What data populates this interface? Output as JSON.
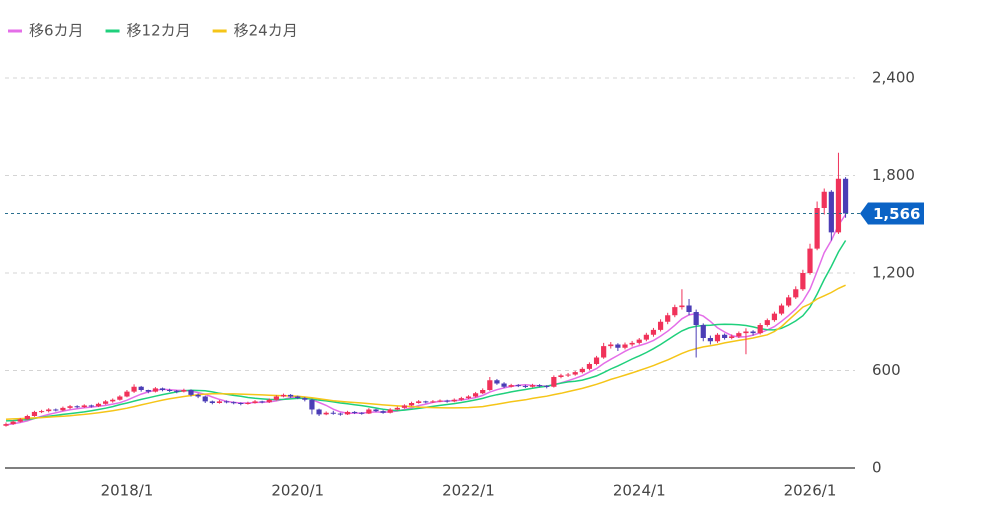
{
  "chart_data": {
    "type": "candlestick",
    "up_color": "#f0325a",
    "down_color": "#4b3db6",
    "x": [
      "2016/8",
      "2016/9",
      "2016/10",
      "2016/11",
      "2016/12",
      "2017/1",
      "2017/2",
      "2017/3",
      "2017/4",
      "2017/5",
      "2017/6",
      "2017/7",
      "2017/8",
      "2017/9",
      "2017/10",
      "2017/11",
      "2017/12",
      "2018/1",
      "2018/2",
      "2018/3",
      "2018/4",
      "2018/5",
      "2018/6",
      "2018/7",
      "2018/8",
      "2018/9",
      "2018/10",
      "2018/11",
      "2018/12",
      "2019/1",
      "2019/2",
      "2019/3",
      "2019/4",
      "2019/5",
      "2019/6",
      "2019/7",
      "2019/8",
      "2019/9",
      "2019/10",
      "2019/11",
      "2019/12",
      "2020/1",
      "2020/2",
      "2020/3",
      "2020/4",
      "2020/5",
      "2020/6",
      "2020/7",
      "2020/8",
      "2020/9",
      "2020/10",
      "2020/11",
      "2020/12",
      "2021/1",
      "2021/2",
      "2021/3",
      "2021/4",
      "2021/5",
      "2021/6",
      "2021/7",
      "2021/8",
      "2021/9",
      "2021/10",
      "2021/11",
      "2021/12",
      "2022/1",
      "2022/2",
      "2022/3",
      "2022/4",
      "2022/5",
      "2022/6",
      "2022/7",
      "2022/8",
      "2022/9",
      "2022/10",
      "2022/11",
      "2022/12",
      "2023/1",
      "2023/2",
      "2023/3",
      "2023/4",
      "2023/5",
      "2023/6",
      "2023/7",
      "2023/8",
      "2023/9",
      "2023/10",
      "2023/11",
      "2023/12",
      "2024/1",
      "2024/2",
      "2024/3",
      "2024/4",
      "2024/5",
      "2024/6",
      "2024/7",
      "2024/8",
      "2024/9",
      "2024/10",
      "2024/11",
      "2024/12",
      "2025/1",
      "2025/2",
      "2025/3",
      "2025/4",
      "2025/5",
      "2025/6",
      "2025/7",
      "2025/8",
      "2025/9",
      "2025/10",
      "2025/11",
      "2025/12",
      "2026/1",
      "2026/2",
      "2026/3",
      "2026/4",
      "2026/5",
      "2026/6"
    ],
    "candles": [
      [
        260,
        280,
        255,
        270
      ],
      [
        270,
        292,
        265,
        285
      ],
      [
        285,
        308,
        280,
        300
      ],
      [
        300,
        328,
        295,
        320
      ],
      [
        320,
        352,
        315,
        345
      ],
      [
        345,
        358,
        338,
        350
      ],
      [
        350,
        368,
        342,
        360
      ],
      [
        360,
        366,
        348,
        355
      ],
      [
        355,
        378,
        350,
        370
      ],
      [
        370,
        388,
        362,
        380
      ],
      [
        380,
        386,
        368,
        375
      ],
      [
        375,
        392,
        370,
        385
      ],
      [
        385,
        390,
        372,
        380
      ],
      [
        380,
        402,
        375,
        395
      ],
      [
        395,
        418,
        390,
        410
      ],
      [
        410,
        428,
        402,
        420
      ],
      [
        420,
        448,
        415,
        440
      ],
      [
        440,
        480,
        435,
        470
      ],
      [
        470,
        515,
        462,
        500
      ],
      [
        500,
        505,
        470,
        480
      ],
      [
        480,
        482,
        460,
        470
      ],
      [
        470,
        498,
        465,
        490
      ],
      [
        490,
        495,
        472,
        480
      ],
      [
        480,
        488,
        468,
        475
      ],
      [
        475,
        480,
        460,
        470
      ],
      [
        470,
        488,
        465,
        480
      ],
      [
        480,
        484,
        440,
        450
      ],
      [
        450,
        458,
        430,
        440
      ],
      [
        440,
        445,
        400,
        410
      ],
      [
        410,
        415,
        392,
        400
      ],
      [
        400,
        418,
        396,
        410
      ],
      [
        410,
        416,
        398,
        405
      ],
      [
        405,
        410,
        392,
        400
      ],
      [
        400,
        404,
        386,
        395
      ],
      [
        395,
        408,
        390,
        400
      ],
      [
        400,
        418,
        396,
        410
      ],
      [
        410,
        414,
        398,
        405
      ],
      [
        405,
        428,
        400,
        420
      ],
      [
        420,
        448,
        415,
        440
      ],
      [
        440,
        458,
        435,
        450
      ],
      [
        450,
        455,
        432,
        440
      ],
      [
        440,
        445,
        424,
        430
      ],
      [
        430,
        436,
        410,
        420
      ],
      [
        420,
        425,
        330,
        360
      ],
      [
        360,
        365,
        320,
        330
      ],
      [
        330,
        348,
        325,
        340
      ],
      [
        340,
        352,
        328,
        335
      ],
      [
        335,
        340,
        322,
        330
      ],
      [
        330,
        352,
        326,
        345
      ],
      [
        345,
        350,
        332,
        340
      ],
      [
        340,
        344,
        328,
        335
      ],
      [
        335,
        368,
        332,
        360
      ],
      [
        360,
        365,
        344,
        350
      ],
      [
        350,
        356,
        334,
        340
      ],
      [
        340,
        368,
        336,
        360
      ],
      [
        360,
        378,
        354,
        370
      ],
      [
        370,
        392,
        365,
        385
      ],
      [
        385,
        408,
        380,
        400
      ],
      [
        400,
        418,
        396,
        410
      ],
      [
        410,
        414,
        398,
        405
      ],
      [
        405,
        418,
        400,
        410
      ],
      [
        410,
        422,
        405,
        415
      ],
      [
        415,
        420,
        402,
        410
      ],
      [
        410,
        428,
        405,
        420
      ],
      [
        420,
        438,
        414,
        430
      ],
      [
        430,
        448,
        424,
        440
      ],
      [
        440,
        468,
        434,
        460
      ],
      [
        460,
        490,
        455,
        480
      ],
      [
        480,
        560,
        475,
        540
      ],
      [
        540,
        548,
        512,
        520
      ],
      [
        520,
        528,
        492,
        500
      ],
      [
        500,
        518,
        495,
        510
      ],
      [
        510,
        516,
        498,
        505
      ],
      [
        505,
        512,
        492,
        500
      ],
      [
        500,
        518,
        496,
        510
      ],
      [
        510,
        516,
        498,
        505
      ],
      [
        505,
        510,
        490,
        500
      ],
      [
        500,
        570,
        495,
        560
      ],
      [
        560,
        580,
        552,
        570
      ],
      [
        570,
        585,
        560,
        575
      ],
      [
        575,
        598,
        568,
        590
      ],
      [
        590,
        620,
        582,
        610
      ],
      [
        610,
        650,
        602,
        640
      ],
      [
        640,
        690,
        632,
        680
      ],
      [
        680,
        770,
        672,
        750
      ],
      [
        750,
        775,
        735,
        760
      ],
      [
        760,
        768,
        720,
        740
      ],
      [
        740,
        772,
        730,
        760
      ],
      [
        760,
        782,
        748,
        770
      ],
      [
        770,
        800,
        760,
        790
      ],
      [
        790,
        832,
        780,
        820
      ],
      [
        820,
        862,
        808,
        850
      ],
      [
        850,
        915,
        840,
        900
      ],
      [
        900,
        955,
        885,
        940
      ],
      [
        940,
        1005,
        928,
        990
      ],
      [
        990,
        1100,
        975,
        1000
      ],
      [
        1000,
        1040,
        940,
        960
      ],
      [
        960,
        975,
        680,
        880
      ],
      [
        880,
        890,
        780,
        800
      ],
      [
        800,
        815,
        760,
        780
      ],
      [
        780,
        830,
        770,
        820
      ],
      [
        820,
        828,
        790,
        800
      ],
      [
        800,
        822,
        792,
        810
      ],
      [
        810,
        840,
        800,
        830
      ],
      [
        830,
        860,
        700,
        840
      ],
      [
        840,
        848,
        815,
        830
      ],
      [
        830,
        892,
        822,
        880
      ],
      [
        880,
        920,
        870,
        910
      ],
      [
        910,
        962,
        900,
        950
      ],
      [
        950,
        1012,
        940,
        1000
      ],
      [
        1000,
        1065,
        990,
        1050
      ],
      [
        1050,
        1118,
        1040,
        1100
      ],
      [
        1100,
        1220,
        1090,
        1200
      ],
      [
        1200,
        1380,
        1190,
        1350
      ],
      [
        1350,
        1640,
        1340,
        1600
      ],
      [
        1600,
        1720,
        1560,
        1700
      ],
      [
        1700,
        1710,
        1400,
        1450
      ],
      [
        1450,
        1940,
        1440,
        1780
      ],
      [
        1780,
        1790,
        1540,
        1566
      ]
    ],
    "series": [
      {
        "name": "移6カ月",
        "color": "#e46ee8",
        "values": [
          265,
          272,
          280,
          290,
          305,
          318,
          330,
          340,
          350,
          358,
          365,
          371,
          375,
          380,
          385,
          393,
          402,
          417,
          436,
          455,
          468,
          478,
          485,
          482,
          479,
          477,
          474,
          464,
          453,
          437,
          422,
          410,
          404,
          400,
          400,
          403,
          405,
          407,
          413,
          423,
          433,
          438,
          436,
          421,
          403,
          385,
          362,
          345,
          337,
          338,
          338,
          342,
          345,
          343,
          345,
          351,
          360,
          370,
          384,
          393,
          404,
          410,
          412,
          415,
          418,
          425,
          433,
          447,
          467,
          482,
          493,
          502,
          509,
          512,
          508,
          505,
          504,
          513,
          524,
          537,
          552,
          568,
          590,
          612,
          643,
          669,
          693,
          718,
          740,
          753,
          767,
          785,
          812,
          842,
          878,
          918,
          942,
          950,
          935,
          902,
          863,
          837,
          815,
          806,
          808,
          818,
          832,
          850,
          870,
          903,
          938,
          978,
          1027,
          1100,
          1210,
          1325,
          1400,
          1495,
          1560
        ]
      },
      {
        "name": "移12カ月",
        "color": "#1fd07c",
        "values": [
          290,
          292,
          295,
          298,
          305,
          312,
          318,
          324,
          330,
          335,
          340,
          345,
          352,
          360,
          368,
          378,
          390,
          400,
          412,
          422,
          432,
          442,
          452,
          460,
          468,
          475,
          478,
          477,
          475,
          468,
          460,
          454,
          447,
          441,
          434,
          429,
          425,
          422,
          421,
          422,
          425,
          428,
          428,
          424,
          418,
          413,
          407,
          400,
          395,
          389,
          384,
          377,
          369,
          361,
          356,
          353,
          356,
          361,
          367,
          373,
          379,
          385,
          391,
          396,
          403,
          411,
          419,
          428,
          441,
          451,
          459,
          468,
          476,
          483,
          491,
          498,
          503,
          513,
          522,
          530,
          534,
          541,
          553,
          567,
          587,
          609,
          628,
          649,
          671,
          690,
          711,
          734,
          760,
          788,
          817,
          844,
          862,
          872,
          877,
          879,
          883,
          885,
          884,
          882,
          877,
          868,
          858,
          851,
          850,
          860,
          880,
          905,
          937,
          990,
          1070,
          1160,
          1240,
          1330,
          1400
        ]
      },
      {
        "name": "移24カ月",
        "color": "#f5c518",
        "values": [
          300,
          302,
          304,
          306,
          308,
          310,
          313,
          316,
          319,
          322,
          326,
          330,
          335,
          340,
          346,
          352,
          360,
          368,
          378,
          388,
          398,
          408,
          418,
          426,
          433,
          440,
          446,
          451,
          455,
          457,
          457,
          456,
          456,
          455,
          453,
          452,
          450,
          448,
          446,
          445,
          443,
          441,
          437,
          432,
          426,
          420,
          414,
          410,
          406,
          403,
          400,
          396,
          392,
          388,
          385,
          382,
          380,
          378,
          375,
          373,
          372,
          371,
          370,
          370,
          371,
          372,
          375,
          378,
          385,
          392,
          400,
          408,
          414,
          420,
          428,
          435,
          442,
          452,
          460,
          470,
          480,
          490,
          502,
          515,
          530,
          545,
          558,
          572,
          585,
          600,
          615,
          630,
          648,
          665,
          685,
          705,
          722,
          735,
          745,
          752,
          760,
          770,
          778,
          785,
          792,
          800,
          810,
          820,
          840,
          870,
          910,
          950,
          990,
          1010,
          1040,
          1060,
          1080,
          1105,
          1125
        ]
      }
    ],
    "ylim": [
      0,
      2600
    ],
    "yticks": [
      0,
      600,
      {
        "value": 1200,
        "label": "1,200"
      },
      {
        "value": 1800,
        "label": "1,800"
      },
      {
        "value": 2400,
        "label": "2,400"
      }
    ],
    "xticks": [
      "2018/1",
      "2020/1",
      "2022/1",
      "2024/1",
      "2026/1"
    ],
    "last_price": {
      "value": 1566,
      "label": "1,566",
      "color": "#0b63c5"
    },
    "grid": true
  }
}
